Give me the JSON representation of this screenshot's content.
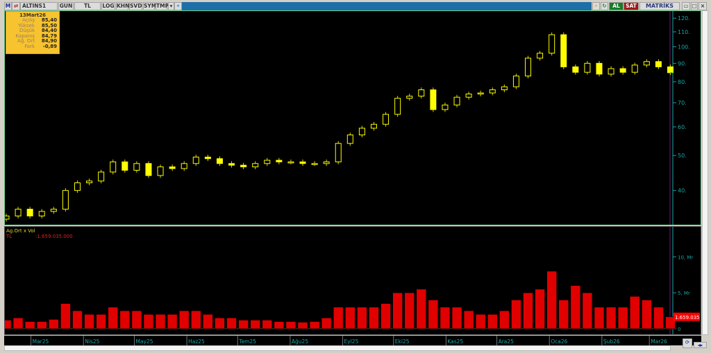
{
  "toolbar": {
    "logo": "M",
    "symbol": "ALTINS1",
    "period": "GUN",
    "currency": "TL",
    "buttons": [
      "LOG",
      "KHN",
      "SVD",
      "SYM",
      "TMP"
    ],
    "buy": "AL",
    "sell": "SAT",
    "brand": "MATRİKS"
  },
  "info_box": {
    "date": "13Mart26",
    "rows": [
      {
        "label": "Açılış",
        "value": "85,40"
      },
      {
        "label": "Yüksek",
        "value": "85,50"
      },
      {
        "label": "Düşük",
        "value": "84,40"
      },
      {
        "label": "Kapanış",
        "value": "84,79"
      },
      {
        "label": "Ağ. Ort",
        "value": "84,90"
      },
      {
        "label": "Fark",
        "value": "-0,89"
      }
    ]
  },
  "volume_panel": {
    "title": "Ag.Ort x Vol",
    "unit": "TL",
    "value_label": ":1.659.035.000",
    "last_badge": "1.659.035"
  },
  "colors": {
    "candle": "#ffff00",
    "volume": "#ff0000",
    "axis": "#1aa6a6",
    "border": "#6fcf8a"
  },
  "chart_data": [
    {
      "type": "candlestick",
      "scale": "log",
      "ylim": [
        32.3,
        125
      ],
      "yticks": [
        40,
        50,
        60,
        70,
        80,
        90,
        100,
        110,
        120
      ],
      "ytick_labels": [
        "40.",
        "50.",
        "60.",
        "70.",
        "80.",
        "90.",
        "100.",
        "110.",
        "120."
      ],
      "xtick_labels": [
        "Mar25",
        "Nis25",
        "May25",
        "Haz25",
        "Tem25",
        "Ağu25",
        "Eyl25",
        "Eki25",
        "Kas25",
        "Ara25",
        "Oca26",
        "Şub26",
        "Mar26"
      ],
      "xtick_dates": [
        "2025-03-01",
        "2025-04-01",
        "2025-05-01",
        "2025-06-01",
        "2025-07-01",
        "2025-08-01",
        "2025-09-01",
        "2025-10-01",
        "2025-11-01",
        "2025-12-01",
        "2026-01-01",
        "2026-02-01",
        "2026-03-01"
      ],
      "x": [
        "2025-02-14",
        "2025-02-21",
        "2025-02-28",
        "2025-03-07",
        "2025-03-14",
        "2025-03-21",
        "2025-03-28",
        "2025-04-04",
        "2025-04-11",
        "2025-04-18",
        "2025-04-25",
        "2025-05-02",
        "2025-05-09",
        "2025-05-16",
        "2025-05-23",
        "2025-05-30",
        "2025-06-06",
        "2025-06-13",
        "2025-06-20",
        "2025-06-27",
        "2025-07-04",
        "2025-07-11",
        "2025-07-18",
        "2025-07-25",
        "2025-08-01",
        "2025-08-08",
        "2025-08-15",
        "2025-08-22",
        "2025-08-29",
        "2025-09-05",
        "2025-09-12",
        "2025-09-19",
        "2025-09-26",
        "2025-10-03",
        "2025-10-10",
        "2025-10-17",
        "2025-10-24",
        "2025-10-31",
        "2025-11-07",
        "2025-11-14",
        "2025-11-21",
        "2025-11-28",
        "2025-12-05",
        "2025-12-12",
        "2025-12-19",
        "2025-12-26",
        "2026-01-02",
        "2026-01-09",
        "2026-01-16",
        "2026-01-23",
        "2026-01-30",
        "2026-02-06",
        "2026-02-13",
        "2026-02-20",
        "2026-02-27",
        "2026-03-06",
        "2026-03-13"
      ],
      "close": [
        34,
        35.5,
        34,
        35,
        35.5,
        40,
        42,
        42.5,
        45,
        48,
        45.5,
        47.5,
        44,
        46.5,
        46,
        47.5,
        49.5,
        49,
        47.5,
        47,
        46.5,
        47.5,
        48.5,
        48,
        48,
        47.5,
        47.5,
        48,
        54,
        57,
        59.5,
        61,
        65,
        72,
        73,
        76,
        67,
        69,
        72.5,
        74,
        74.5,
        76,
        77.5,
        83,
        93,
        96,
        108,
        88,
        85,
        90,
        84,
        87,
        85,
        89,
        91,
        88,
        84.79
      ]
    },
    {
      "type": "bar",
      "ylabel": "Mr",
      "ylim": [
        0,
        13.5
      ],
      "yticks": [
        0,
        5,
        10
      ],
      "ytick_labels": [
        "0",
        "5, Mr",
        "10, Mr"
      ],
      "values": [
        1.2,
        1.5,
        1.0,
        1.0,
        1.3,
        3.5,
        2.5,
        2,
        2,
        3,
        2.5,
        2.5,
        2,
        2,
        2,
        2.5,
        2.5,
        2,
        1.5,
        1.5,
        1.2,
        1.2,
        1.2,
        1.0,
        1.0,
        0.9,
        1.0,
        1.5,
        3,
        3,
        3,
        3,
        3.5,
        5,
        5,
        5.5,
        4,
        3,
        3,
        2.5,
        2,
        2,
        2.5,
        4,
        5,
        5.5,
        8,
        4,
        6,
        5,
        3,
        3,
        3,
        4.5,
        4,
        3,
        1.66
      ]
    }
  ]
}
